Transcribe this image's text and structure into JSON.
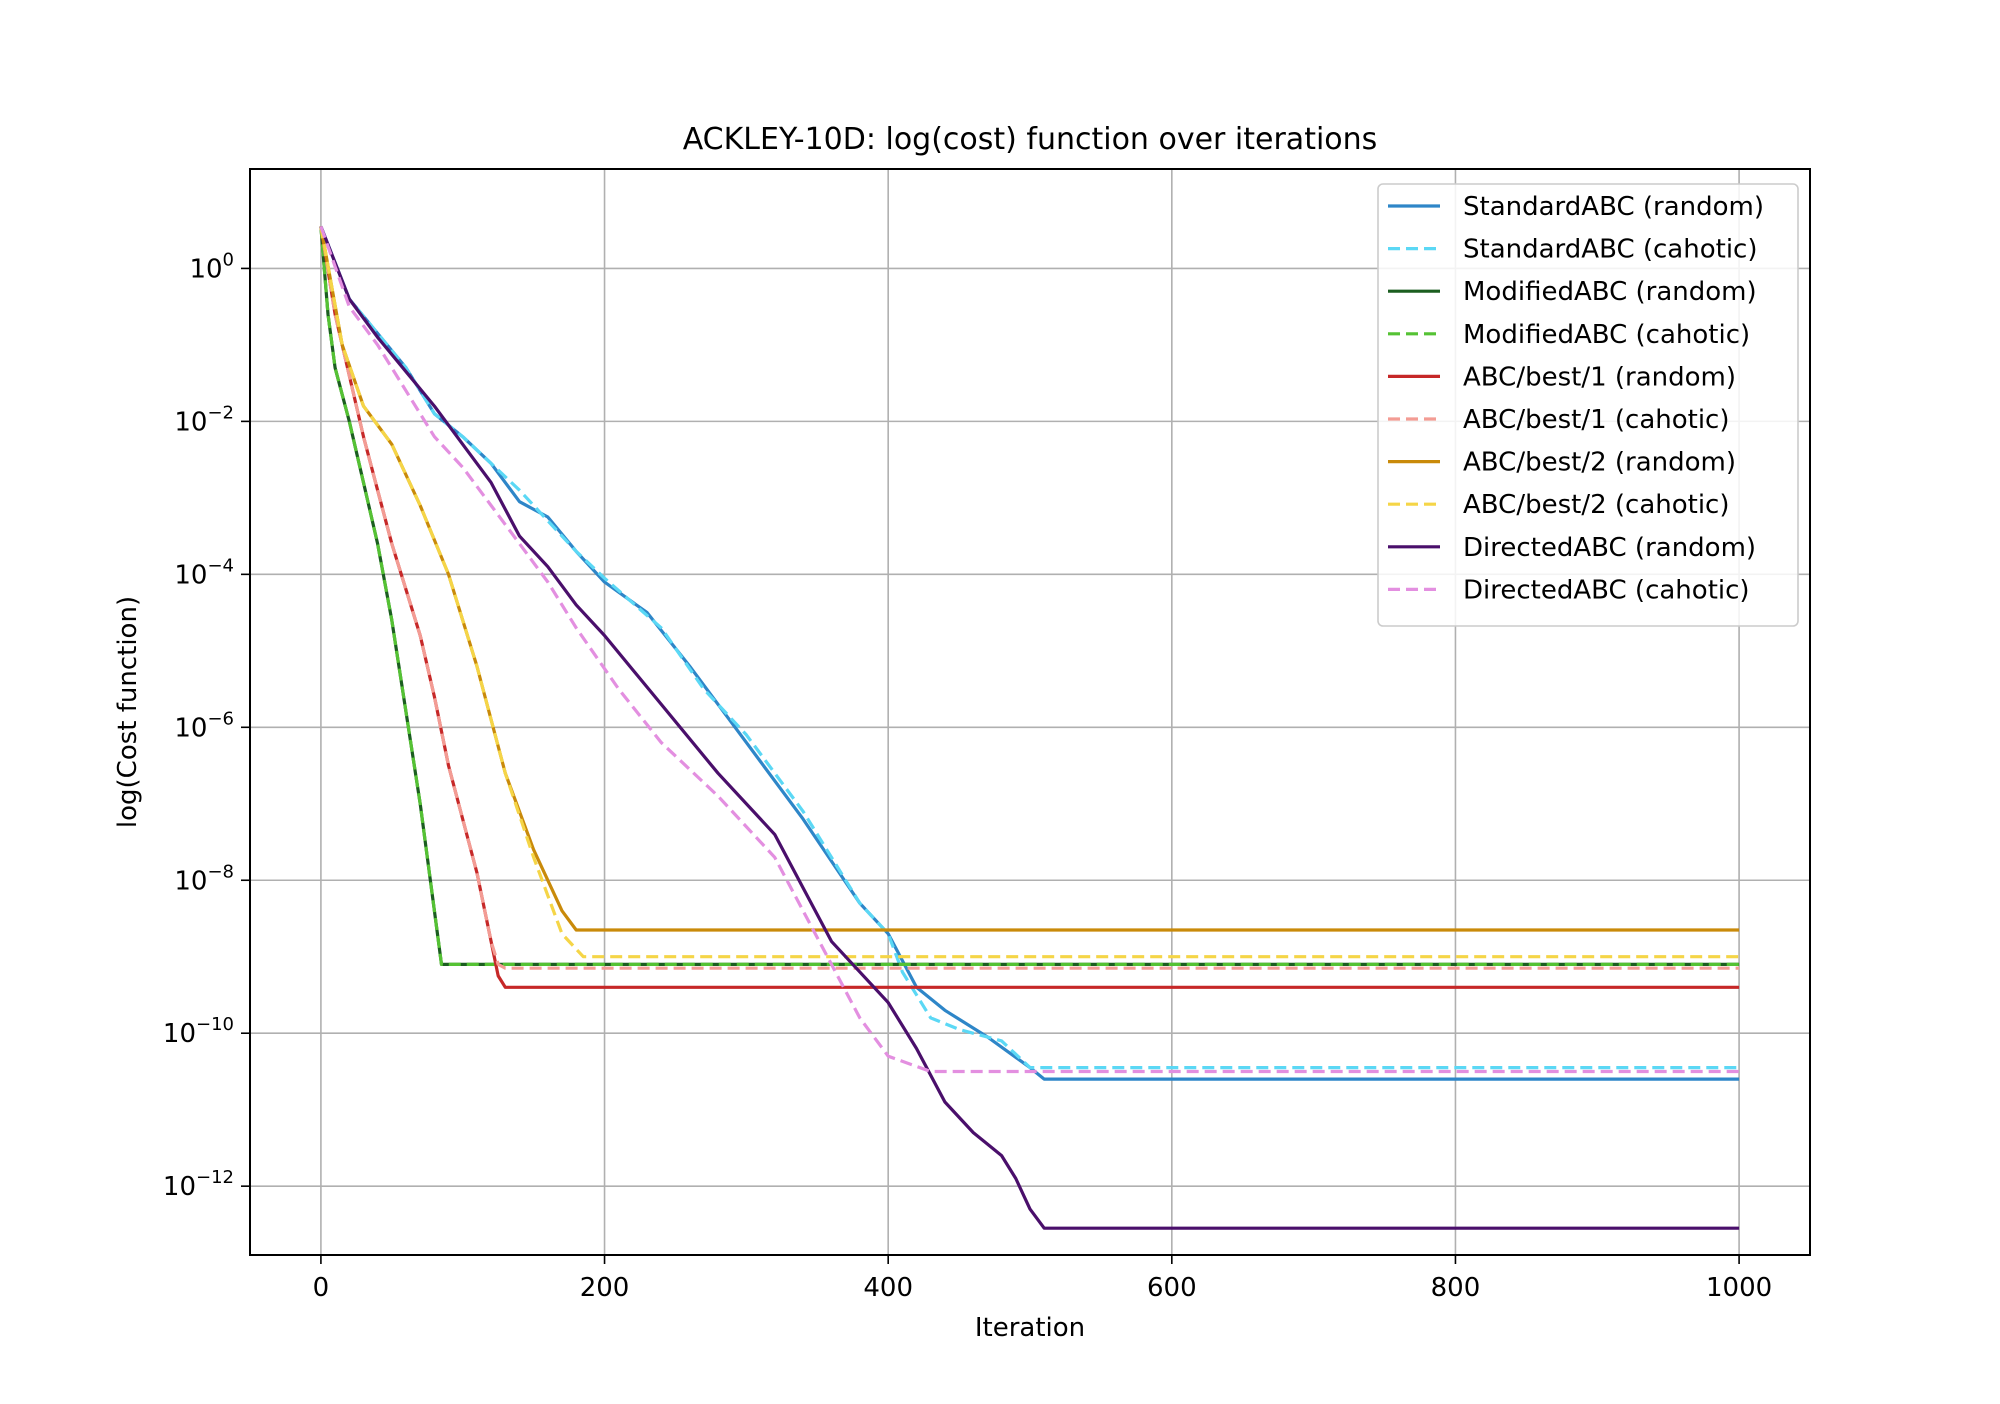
{
  "chart_data": {
    "type": "line",
    "title": "ACKLEY-10D: log(cost) function over iterations",
    "xlabel": "Iteration",
    "ylabel": "log(Cost function)",
    "xlim": [
      -50,
      1050
    ],
    "ylim_log10": [
      -12.9,
      1.3
    ],
    "y_scale": "log",
    "x_ticks": [
      0,
      200,
      400,
      600,
      800,
      1000
    ],
    "x_tick_labels": [
      "0",
      "200",
      "400",
      "600",
      "800",
      "1000"
    ],
    "y_ticks_log10": [
      0,
      -2,
      -4,
      -6,
      -8,
      -10,
      -12
    ],
    "y_tick_bases": [
      "10",
      "10",
      "10",
      "10",
      "10",
      "10",
      "10"
    ],
    "y_tick_exponents": [
      "0",
      "−2",
      "−4",
      "−6",
      "−8",
      "−10",
      "−12"
    ],
    "grid": true,
    "legend_position": "top-right",
    "series": [
      {
        "name": "StandardABC (random)",
        "color": "#2e86c8",
        "dash": "solid",
        "points": [
          [
            0,
            0.55
          ],
          [
            20,
            -0.4
          ],
          [
            40,
            -0.85
          ],
          [
            60,
            -1.3
          ],
          [
            80,
            -1.9
          ],
          [
            100,
            -2.2
          ],
          [
            120,
            -2.55
          ],
          [
            140,
            -3.05
          ],
          [
            160,
            -3.25
          ],
          [
            180,
            -3.7
          ],
          [
            200,
            -4.1
          ],
          [
            230,
            -4.5
          ],
          [
            260,
            -5.2
          ],
          [
            300,
            -6.2
          ],
          [
            340,
            -7.2
          ],
          [
            380,
            -8.3
          ],
          [
            400,
            -8.7
          ],
          [
            420,
            -9.4
          ],
          [
            440,
            -9.7
          ],
          [
            470,
            -10.05
          ],
          [
            500,
            -10.45
          ],
          [
            510,
            -10.6
          ],
          [
            1000,
            -10.6
          ]
        ]
      },
      {
        "name": "StandardABC (cahotic)",
        "color": "#5bd8f5",
        "dash": "dashed",
        "points": [
          [
            0,
            0.55
          ],
          [
            20,
            -0.4
          ],
          [
            40,
            -0.85
          ],
          [
            60,
            -1.3
          ],
          [
            80,
            -1.9
          ],
          [
            100,
            -2.2
          ],
          [
            120,
            -2.55
          ],
          [
            140,
            -2.9
          ],
          [
            160,
            -3.3
          ],
          [
            180,
            -3.7
          ],
          [
            200,
            -4.05
          ],
          [
            240,
            -4.7
          ],
          [
            270,
            -5.5
          ],
          [
            300,
            -6.1
          ],
          [
            340,
            -7.1
          ],
          [
            380,
            -8.3
          ],
          [
            400,
            -8.7
          ],
          [
            410,
            -9.2
          ],
          [
            430,
            -9.8
          ],
          [
            450,
            -9.95
          ],
          [
            480,
            -10.1
          ],
          [
            500,
            -10.45
          ],
          [
            1000,
            -10.45
          ]
        ]
      },
      {
        "name": "ModifiedABC (random)",
        "color": "#1b5e20",
        "dash": "solid",
        "points": [
          [
            0,
            0.55
          ],
          [
            5,
            -0.6
          ],
          [
            10,
            -1.3
          ],
          [
            20,
            -2.0
          ],
          [
            30,
            -2.8
          ],
          [
            40,
            -3.6
          ],
          [
            50,
            -4.6
          ],
          [
            60,
            -5.8
          ],
          [
            70,
            -7.0
          ],
          [
            80,
            -8.4
          ],
          [
            85,
            -9.1
          ],
          [
            1000,
            -9.1
          ]
        ]
      },
      {
        "name": "ModifiedABC (cahotic)",
        "color": "#55c234",
        "dash": "dashed",
        "points": [
          [
            0,
            0.55
          ],
          [
            5,
            -0.6
          ],
          [
            10,
            -1.3
          ],
          [
            20,
            -2.0
          ],
          [
            30,
            -2.8
          ],
          [
            40,
            -3.6
          ],
          [
            50,
            -4.6
          ],
          [
            60,
            -5.8
          ],
          [
            70,
            -7.0
          ],
          [
            80,
            -8.4
          ],
          [
            85,
            -9.1
          ],
          [
            1000,
            -9.1
          ]
        ]
      },
      {
        "name": "ABC/best/1 (random)",
        "color": "#c62828",
        "dash": "solid",
        "points": [
          [
            0,
            0.55
          ],
          [
            10,
            -0.6
          ],
          [
            20,
            -1.4
          ],
          [
            30,
            -2.2
          ],
          [
            40,
            -2.9
          ],
          [
            50,
            -3.6
          ],
          [
            60,
            -4.2
          ],
          [
            70,
            -4.8
          ],
          [
            80,
            -5.6
          ],
          [
            90,
            -6.5
          ],
          [
            100,
            -7.2
          ],
          [
            110,
            -7.9
          ],
          [
            120,
            -8.8
          ],
          [
            125,
            -9.25
          ],
          [
            130,
            -9.4
          ],
          [
            1000,
            -9.4
          ]
        ]
      },
      {
        "name": "ABC/best/1 (cahotic)",
        "color": "#f39c94",
        "dash": "dashed",
        "points": [
          [
            0,
            0.55
          ],
          [
            10,
            -0.6
          ],
          [
            20,
            -1.4
          ],
          [
            30,
            -2.2
          ],
          [
            40,
            -2.9
          ],
          [
            50,
            -3.6
          ],
          [
            60,
            -4.2
          ],
          [
            70,
            -4.8
          ],
          [
            80,
            -5.6
          ],
          [
            90,
            -6.5
          ],
          [
            100,
            -7.2
          ],
          [
            110,
            -7.9
          ],
          [
            120,
            -8.8
          ],
          [
            125,
            -9.1
          ],
          [
            130,
            -9.15
          ],
          [
            1000,
            -9.15
          ]
        ]
      },
      {
        "name": "ABC/best/2 (random)",
        "color": "#c98a0a",
        "dash": "solid",
        "points": [
          [
            0,
            0.55
          ],
          [
            15,
            -1.0
          ],
          [
            30,
            -1.8
          ],
          [
            50,
            -2.3
          ],
          [
            70,
            -3.1
          ],
          [
            90,
            -4.0
          ],
          [
            110,
            -5.2
          ],
          [
            130,
            -6.6
          ],
          [
            150,
            -7.6
          ],
          [
            170,
            -8.4
          ],
          [
            180,
            -8.65
          ],
          [
            1000,
            -8.65
          ]
        ]
      },
      {
        "name": "ABC/best/2 (cahotic)",
        "color": "#f5d547",
        "dash": "dashed",
        "points": [
          [
            0,
            0.55
          ],
          [
            15,
            -1.0
          ],
          [
            30,
            -1.8
          ],
          [
            50,
            -2.3
          ],
          [
            70,
            -3.1
          ],
          [
            90,
            -4.0
          ],
          [
            110,
            -5.2
          ],
          [
            130,
            -6.6
          ],
          [
            150,
            -7.7
          ],
          [
            170,
            -8.7
          ],
          [
            185,
            -9.0
          ],
          [
            1000,
            -9.0
          ]
        ]
      },
      {
        "name": "DirectedABC (random)",
        "color": "#4a0f6b",
        "dash": "solid",
        "points": [
          [
            0,
            0.55
          ],
          [
            20,
            -0.4
          ],
          [
            40,
            -0.9
          ],
          [
            60,
            -1.35
          ],
          [
            80,
            -1.8
          ],
          [
            100,
            -2.3
          ],
          [
            120,
            -2.8
          ],
          [
            140,
            -3.5
          ],
          [
            160,
            -3.9
          ],
          [
            180,
            -4.4
          ],
          [
            200,
            -4.8
          ],
          [
            240,
            -5.7
          ],
          [
            280,
            -6.6
          ],
          [
            320,
            -7.4
          ],
          [
            360,
            -8.8
          ],
          [
            400,
            -9.6
          ],
          [
            420,
            -10.2
          ],
          [
            440,
            -10.9
          ],
          [
            460,
            -11.3
          ],
          [
            480,
            -11.6
          ],
          [
            490,
            -11.9
          ],
          [
            500,
            -12.3
          ],
          [
            510,
            -12.55
          ],
          [
            1000,
            -12.55
          ]
        ]
      },
      {
        "name": "DirectedABC (cahotic)",
        "color": "#e38fe0",
        "dash": "dashed",
        "points": [
          [
            0,
            0.55
          ],
          [
            20,
            -0.5
          ],
          [
            40,
            -1.0
          ],
          [
            60,
            -1.6
          ],
          [
            80,
            -2.2
          ],
          [
            100,
            -2.6
          ],
          [
            120,
            -3.1
          ],
          [
            140,
            -3.6
          ],
          [
            160,
            -4.1
          ],
          [
            180,
            -4.7
          ],
          [
            210,
            -5.5
          ],
          [
            240,
            -6.2
          ],
          [
            280,
            -6.9
          ],
          [
            320,
            -7.7
          ],
          [
            360,
            -9.1
          ],
          [
            380,
            -9.8
          ],
          [
            400,
            -10.3
          ],
          [
            430,
            -10.5
          ],
          [
            460,
            -10.5
          ],
          [
            1000,
            -10.5
          ]
        ]
      }
    ]
  }
}
